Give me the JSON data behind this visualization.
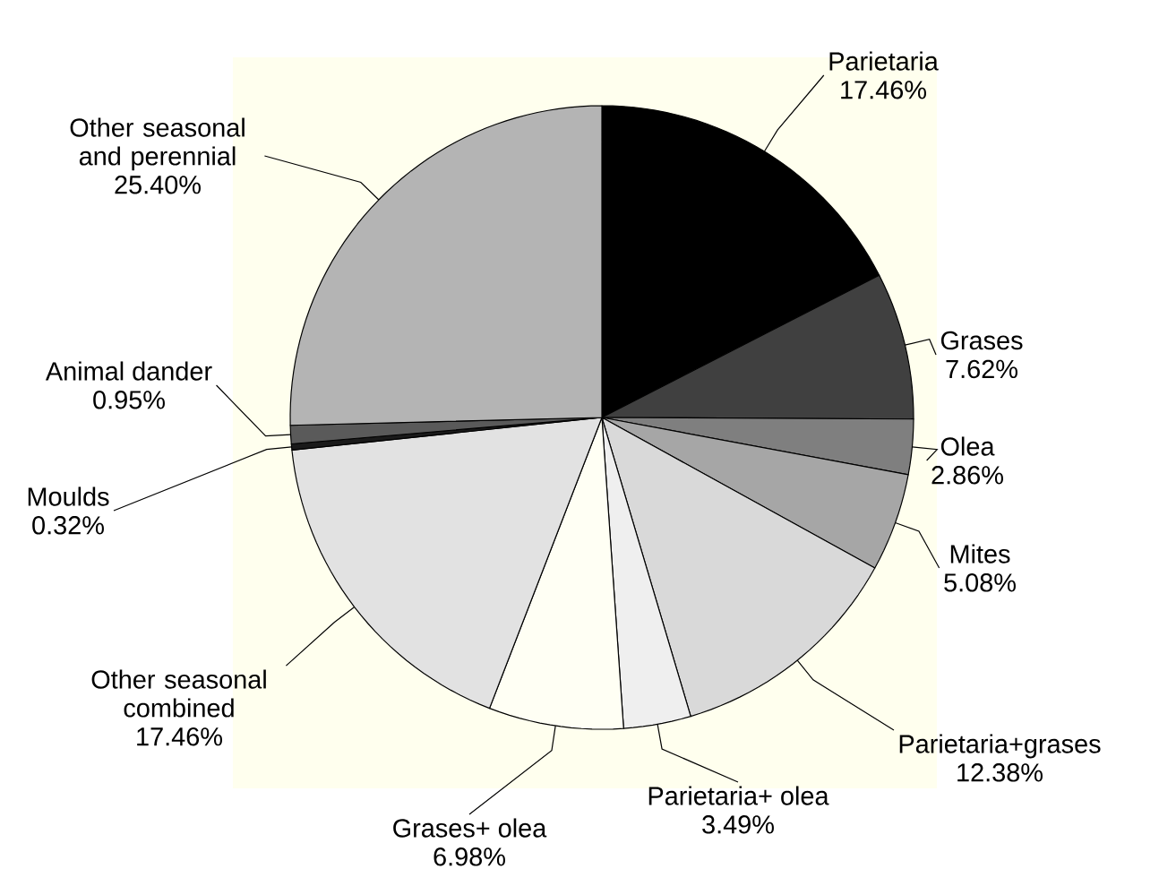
{
  "chart_data": {
    "type": "pie",
    "categories": [
      "Parietaria",
      "Grases",
      "Olea",
      "Mites",
      "Parietaria+grases",
      "Parietaria+ olea",
      "Grases+ olea",
      "Other seasonal combined",
      "Moulds",
      "Animal dander",
      "Other seasonal and perennial"
    ],
    "values": [
      17.46,
      7.62,
      2.86,
      5.08,
      12.38,
      3.49,
      6.98,
      17.46,
      0.32,
      0.95,
      25.4
    ],
    "value_labels": [
      "17.46%",
      "7.62%",
      "2.86%",
      "5.08%",
      "12.38%",
      "3.49%",
      "6.98%",
      "17.46%",
      "0.32%",
      "0.95%",
      "25.40%"
    ],
    "colors": [
      "#000000",
      "#404040",
      "#7f7f7f",
      "#a6a6a6",
      "#d9d9d9",
      "#efefef",
      "#fffff4",
      "#e2e2e2",
      "#1a1a1a",
      "#5a5a5a",
      "#b4b4b4"
    ]
  }
}
